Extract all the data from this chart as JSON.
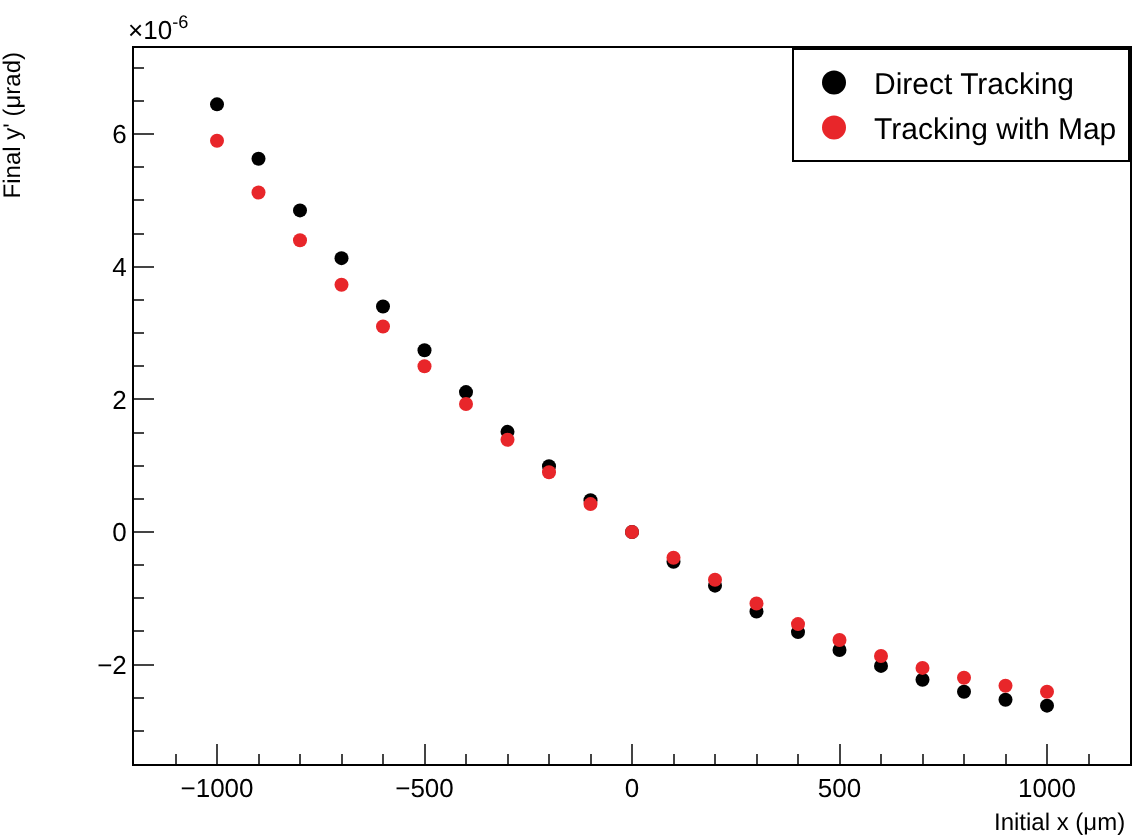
{
  "chart_data": {
    "type": "scatter",
    "xlabel": "Initial x (μm)",
    "ylabel": "Final y' (μrad)",
    "annotations": [
      "×10$^{-6}$"
    ],
    "x": [
      -1000,
      -900,
      -800,
      -700,
      -600,
      -500,
      -400,
      -300,
      -200,
      -100,
      0,
      100,
      200,
      300,
      400,
      500,
      600,
      700,
      800,
      900,
      1000
    ],
    "series": [
      {
        "name": "Direct Tracking",
        "color": "#000000",
        "values": [
          6.45,
          5.63,
          4.85,
          4.13,
          3.4,
          2.74,
          2.11,
          1.51,
          0.99,
          0.48,
          0,
          -0.45,
          -0.81,
          -1.2,
          -1.51,
          -1.78,
          -2.02,
          -2.23,
          -2.41,
          -2.53,
          -2.62
        ]
      },
      {
        "name": "Tracking with Map",
        "color": "#e8262a",
        "values": [
          5.9,
          5.12,
          4.4,
          3.73,
          3.1,
          2.5,
          1.93,
          1.39,
          0.9,
          0.42,
          0,
          -0.39,
          -0.72,
          -1.08,
          -1.39,
          -1.63,
          -1.87,
          -2.05,
          -2.2,
          -2.32,
          -2.41
        ]
      }
    ],
    "xlim": [
      -1200,
      1200
    ],
    "xticks": [
      -1000,
      -500,
      0,
      500,
      1000
    ],
    "ylim": [
      -3.5,
      7.3
    ],
    "yticks": [
      -2,
      0,
      2,
      4,
      6
    ],
    "legend": "top right",
    "marker": "circle"
  }
}
